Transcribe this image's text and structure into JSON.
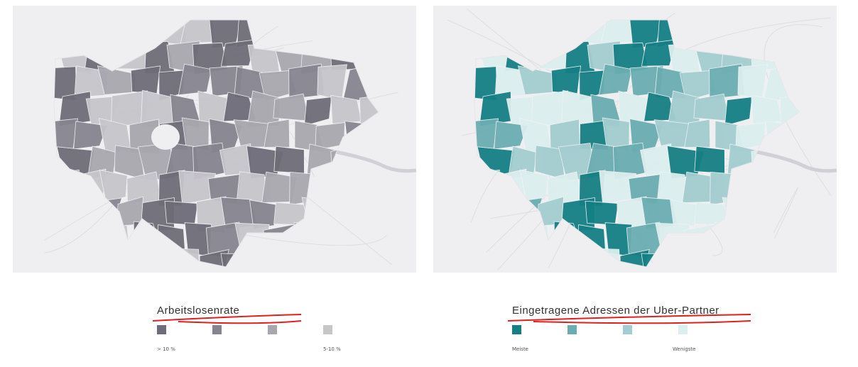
{
  "maps": [
    {
      "legend": {
        "title": "Arbeitslosenrate",
        "swatches": [
          "#6e6c78",
          "#86848f",
          "#a8a7ae",
          "#c6c5ca"
        ],
        "low_label": "> 10 %",
        "high_label": "5-10 %"
      }
    },
    {
      "legend": {
        "title": "Eingetragene Adressen der Uber-Partner",
        "swatches": [
          "#157f84",
          "#6aadb2",
          "#a3cdd0",
          "#dceeee"
        ],
        "low_label": "Meiste",
        "high_label": "Wenigste"
      }
    }
  ]
}
